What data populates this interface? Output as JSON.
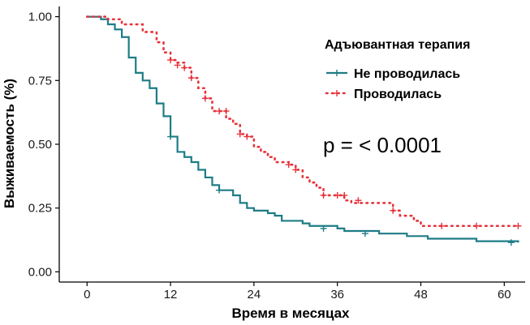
{
  "colors": {
    "no_therapy": "#1E7C86",
    "therapy": "#E6333B",
    "axis": "#000000"
  },
  "chart_data": {
    "type": "line",
    "subtype": "kaplan-meier",
    "title": "",
    "xlabel": "Время в месяцах",
    "ylabel": "Выживаемость (%)",
    "xlim": [
      -4,
      63
    ],
    "ylim": [
      -0.04,
      1.04
    ],
    "xticks": [
      0,
      12,
      24,
      36,
      48,
      60
    ],
    "xtick_labels": [
      "0",
      "12",
      "24",
      "36",
      "48",
      "60"
    ],
    "yticks": [
      0,
      0.25,
      0.5,
      0.75,
      1.0
    ],
    "ytick_labels": [
      "0.00",
      "0.25",
      "0.50",
      "0.75",
      "1.00"
    ],
    "grid": false,
    "legend_title": "Адъювантная терапия",
    "legend_position": "top-right",
    "annotation": "p = < 0.0001",
    "series": [
      {
        "name": "Не проводилась",
        "color": "#1E7C86",
        "line_style": "solid",
        "steps": [
          [
            0,
            1.0
          ],
          [
            2,
            0.99
          ],
          [
            3,
            0.97
          ],
          [
            4,
            0.95
          ],
          [
            5,
            0.92
          ],
          [
            6,
            0.84
          ],
          [
            7,
            0.78
          ],
          [
            8,
            0.75
          ],
          [
            9,
            0.72
          ],
          [
            10,
            0.66
          ],
          [
            11,
            0.61
          ],
          [
            12,
            0.53
          ],
          [
            13,
            0.47
          ],
          [
            14,
            0.45
          ],
          [
            15,
            0.43
          ],
          [
            16,
            0.4
          ],
          [
            17,
            0.37
          ],
          [
            18,
            0.34
          ],
          [
            19,
            0.32
          ],
          [
            21,
            0.3
          ],
          [
            22,
            0.27
          ],
          [
            23,
            0.25
          ],
          [
            24,
            0.24
          ],
          [
            26,
            0.23
          ],
          [
            27,
            0.22
          ],
          [
            28,
            0.2
          ],
          [
            31,
            0.19
          ],
          [
            32,
            0.18
          ],
          [
            36,
            0.17
          ],
          [
            37,
            0.16
          ],
          [
            42,
            0.15
          ],
          [
            46,
            0.14
          ],
          [
            49,
            0.13
          ],
          [
            56,
            0.12
          ],
          [
            62,
            0.115
          ]
        ],
        "censor_marks": [
          [
            12,
            0.53
          ],
          [
            19,
            0.32
          ],
          [
            34,
            0.17
          ],
          [
            40,
            0.15
          ],
          [
            61,
            0.115
          ]
        ]
      },
      {
        "name": "Проводилась",
        "color": "#E6333B",
        "line_style": "dotted",
        "steps": [
          [
            0,
            1.0
          ],
          [
            3,
            0.99
          ],
          [
            5,
            0.97
          ],
          [
            8,
            0.94
          ],
          [
            10,
            0.9
          ],
          [
            11,
            0.86
          ],
          [
            12,
            0.83
          ],
          [
            13,
            0.82
          ],
          [
            14,
            0.8
          ],
          [
            15,
            0.76
          ],
          [
            16,
            0.72
          ],
          [
            17,
            0.68
          ],
          [
            18,
            0.63
          ],
          [
            20,
            0.6
          ],
          [
            21,
            0.58
          ],
          [
            22,
            0.54
          ],
          [
            23,
            0.53
          ],
          [
            24,
            0.49
          ],
          [
            25,
            0.47
          ],
          [
            26,
            0.45
          ],
          [
            27,
            0.43
          ],
          [
            29,
            0.42
          ],
          [
            30,
            0.4
          ],
          [
            31,
            0.37
          ],
          [
            32,
            0.35
          ],
          [
            33,
            0.33
          ],
          [
            34,
            0.3
          ],
          [
            37,
            0.28
          ],
          [
            38,
            0.27
          ],
          [
            44,
            0.24
          ],
          [
            45,
            0.22
          ],
          [
            47,
            0.2
          ],
          [
            48,
            0.18
          ],
          [
            62,
            0.18
          ]
        ],
        "censor_marks": [
          [
            12,
            0.83
          ],
          [
            13,
            0.81
          ],
          [
            14,
            0.8
          ],
          [
            15,
            0.76
          ],
          [
            17,
            0.68
          ],
          [
            19,
            0.63
          ],
          [
            20,
            0.63
          ],
          [
            22,
            0.54
          ],
          [
            23,
            0.53
          ],
          [
            29,
            0.42
          ],
          [
            30,
            0.4
          ],
          [
            34,
            0.3
          ],
          [
            36,
            0.3
          ],
          [
            37,
            0.3
          ],
          [
            39,
            0.28
          ],
          [
            44,
            0.24
          ],
          [
            51,
            0.18
          ],
          [
            56,
            0.18
          ],
          [
            62,
            0.18
          ]
        ]
      }
    ]
  }
}
